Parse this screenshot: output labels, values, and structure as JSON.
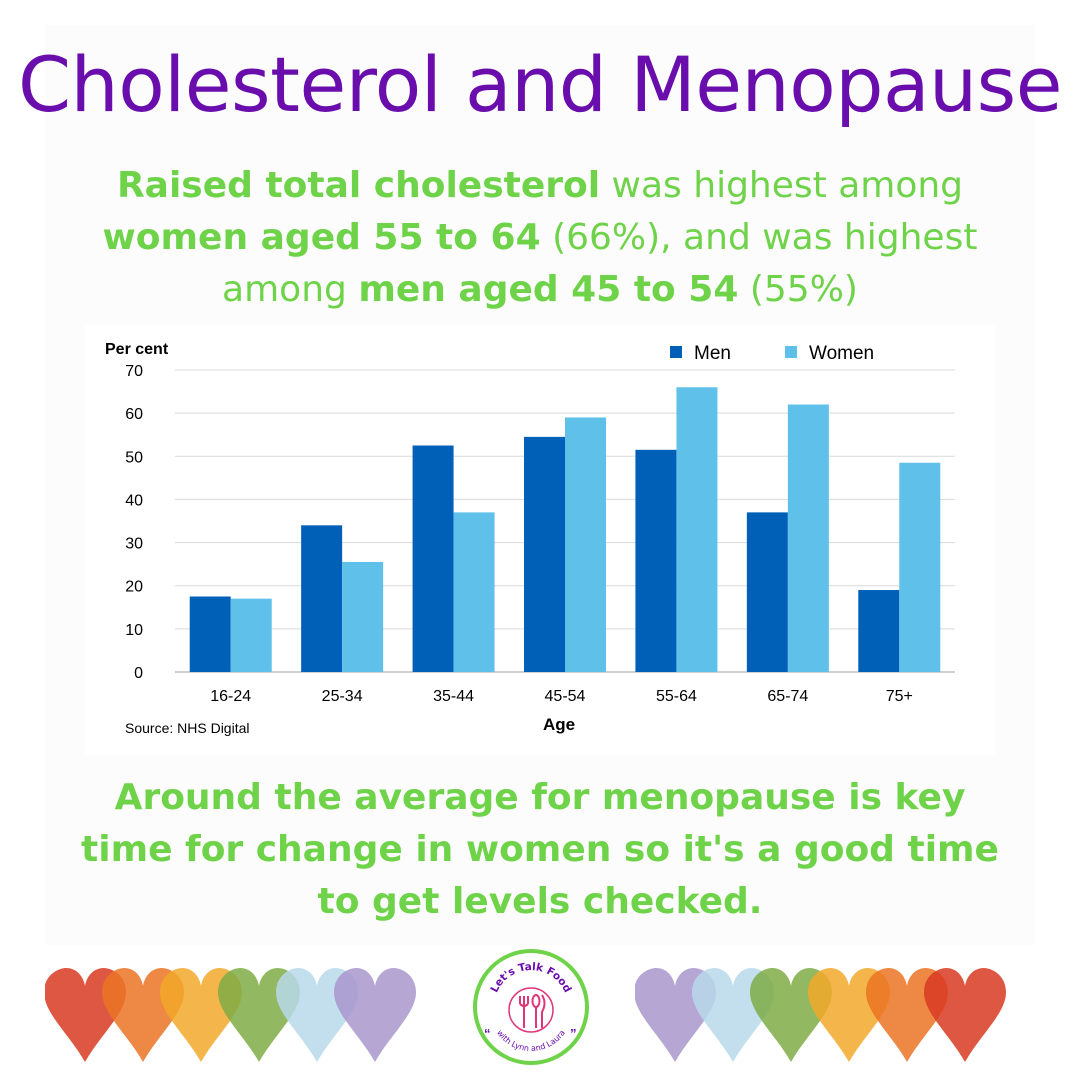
{
  "title": "Cholesterol and Menopause",
  "subtitle": {
    "p1": "Raised total cholesterol",
    "p2": " was highest among ",
    "p3": "women aged 55 to 64",
    "p4": " (66%), and was highest among ",
    "p5": "men aged 45 to 54",
    "p6": " (55%)"
  },
  "bottom_text": "Around the average for menopause is key time for change in women so it's a good time to get levels checked.",
  "chart_data": {
    "type": "bar",
    "ylabel": "Per cent",
    "xlabel": "Age",
    "source": "Source: NHS  Digital",
    "categories": [
      "16-24",
      "25-34",
      "35-44",
      "45-54",
      "55-64",
      "65-74",
      "75+"
    ],
    "series": [
      {
        "name": "Men",
        "color": "#0060b8",
        "values": [
          17.5,
          34,
          52.5,
          54.5,
          51.5,
          37,
          19
        ]
      },
      {
        "name": "Women",
        "color": "#5fc1ea",
        "values": [
          17,
          25.5,
          37,
          59,
          66,
          62,
          48.5
        ]
      }
    ],
    "ylim": [
      0,
      70
    ],
    "yticks": [
      0,
      10,
      20,
      30,
      40,
      50,
      60,
      70
    ],
    "grid": true,
    "legend": "top-right"
  },
  "logo": {
    "top_text": "Let's Talk Food",
    "bottom_text": "with Lynn and Laura",
    "border_color": "#6fd34a",
    "text_color": "#6a0dad",
    "icon_color": "#e0357a"
  },
  "colors": {
    "title": "#6a0dad",
    "accent_green": "#6fd34a"
  },
  "hearts": [
    "#d83a22",
    "#ea7424",
    "#f2a82a",
    "#7fad45",
    "#b9d8ea",
    "#a896cd"
  ]
}
